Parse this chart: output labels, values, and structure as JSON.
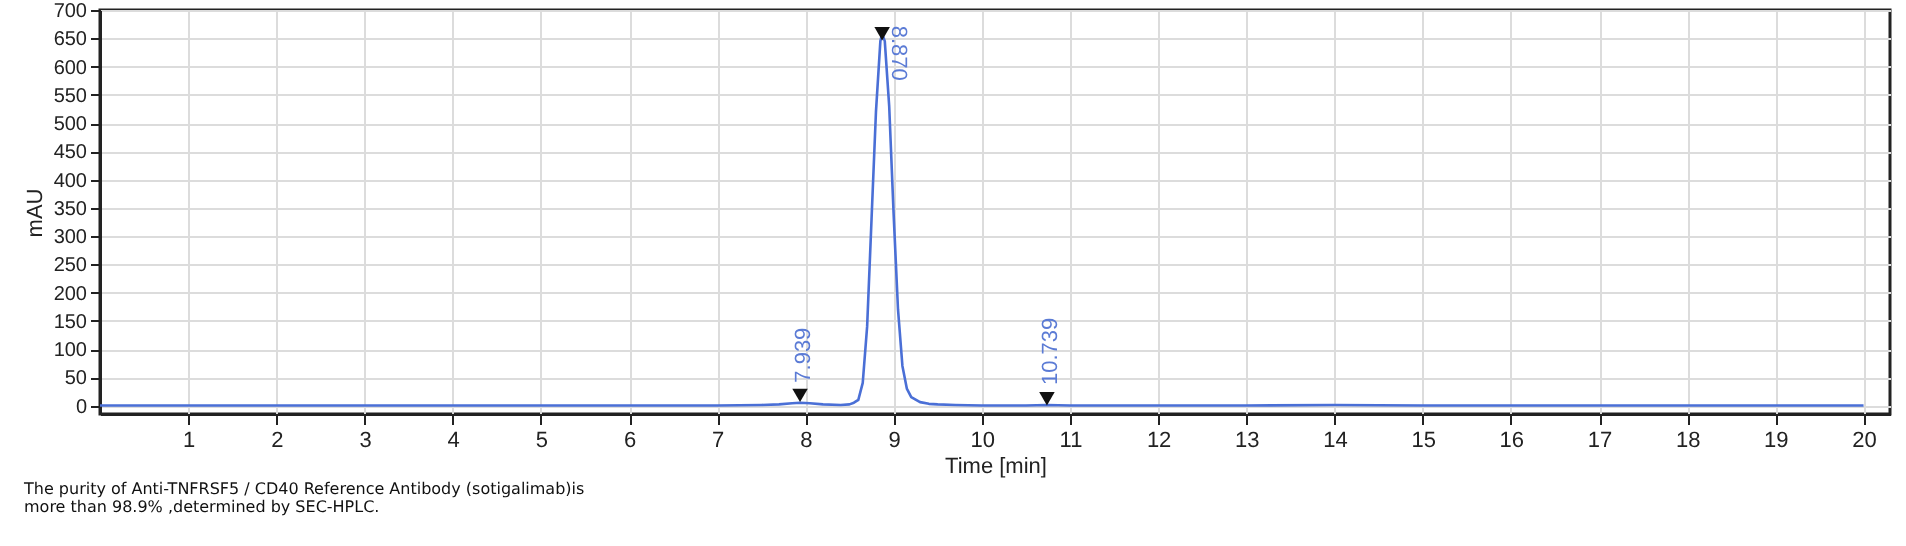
{
  "chart_data": {
    "type": "line",
    "xlabel": "Time [min]",
    "ylabel": "mAU",
    "xlim": [
      0,
      20.3
    ],
    "xticks": [
      1,
      2,
      3,
      4,
      5,
      6,
      7,
      8,
      9,
      10,
      11,
      12,
      13,
      14,
      15,
      16,
      17,
      18,
      19,
      20
    ],
    "ylim": [
      -15,
      700
    ],
    "yticks": [
      0,
      50,
      100,
      150,
      200,
      250,
      300,
      350,
      400,
      450,
      500,
      550,
      600,
      650,
      700
    ],
    "grid": true,
    "marker": "none",
    "line_style": "solid",
    "series": [
      {
        "color": "#4a6fd6",
        "x": [
          0,
          1,
          2,
          3,
          4,
          5,
          6,
          7,
          7.5,
          7.7,
          7.85,
          7.94,
          8.05,
          8.2,
          8.4,
          8.5,
          8.55,
          8.6,
          8.65,
          8.7,
          8.75,
          8.8,
          8.85,
          8.87,
          8.9,
          8.95,
          9.0,
          9.05,
          9.1,
          9.15,
          9.2,
          9.3,
          9.4,
          9.5,
          9.7,
          10,
          10.5,
          10.74,
          11,
          12,
          13,
          14,
          15,
          16,
          17,
          18,
          19,
          20
        ],
        "values": [
          0,
          0,
          0,
          0,
          0,
          0,
          0,
          0,
          1,
          2,
          4,
          5,
          4,
          2,
          1,
          2,
          5,
          10,
          40,
          140,
          330,
          520,
          645,
          658,
          645,
          530,
          340,
          170,
          70,
          30,
          15,
          6,
          3,
          2,
          1,
          0,
          0,
          1,
          0,
          0,
          0,
          1,
          0,
          0,
          0,
          0,
          0,
          0
        ]
      },
      {
        "type": "scatter",
        "marker": "triangle",
        "color": "#111111",
        "x": [
          7.939,
          8.87,
          10.739
        ],
        "values": [
          18,
          658,
          12
        ]
      }
    ],
    "annotations": [
      {
        "text": "7.939",
        "x": 7.939,
        "y": 5
      },
      {
        "text": "8.870",
        "x": 8.87,
        "y": 658
      },
      {
        "text": "10.739",
        "x": 10.739,
        "y": 1
      },
      "The purity of Anti-TNFRSF5 / CD40 Reference Antibody (sotigalimab)is more than 98.9% ,determined by SEC-HPLC."
    ]
  }
}
